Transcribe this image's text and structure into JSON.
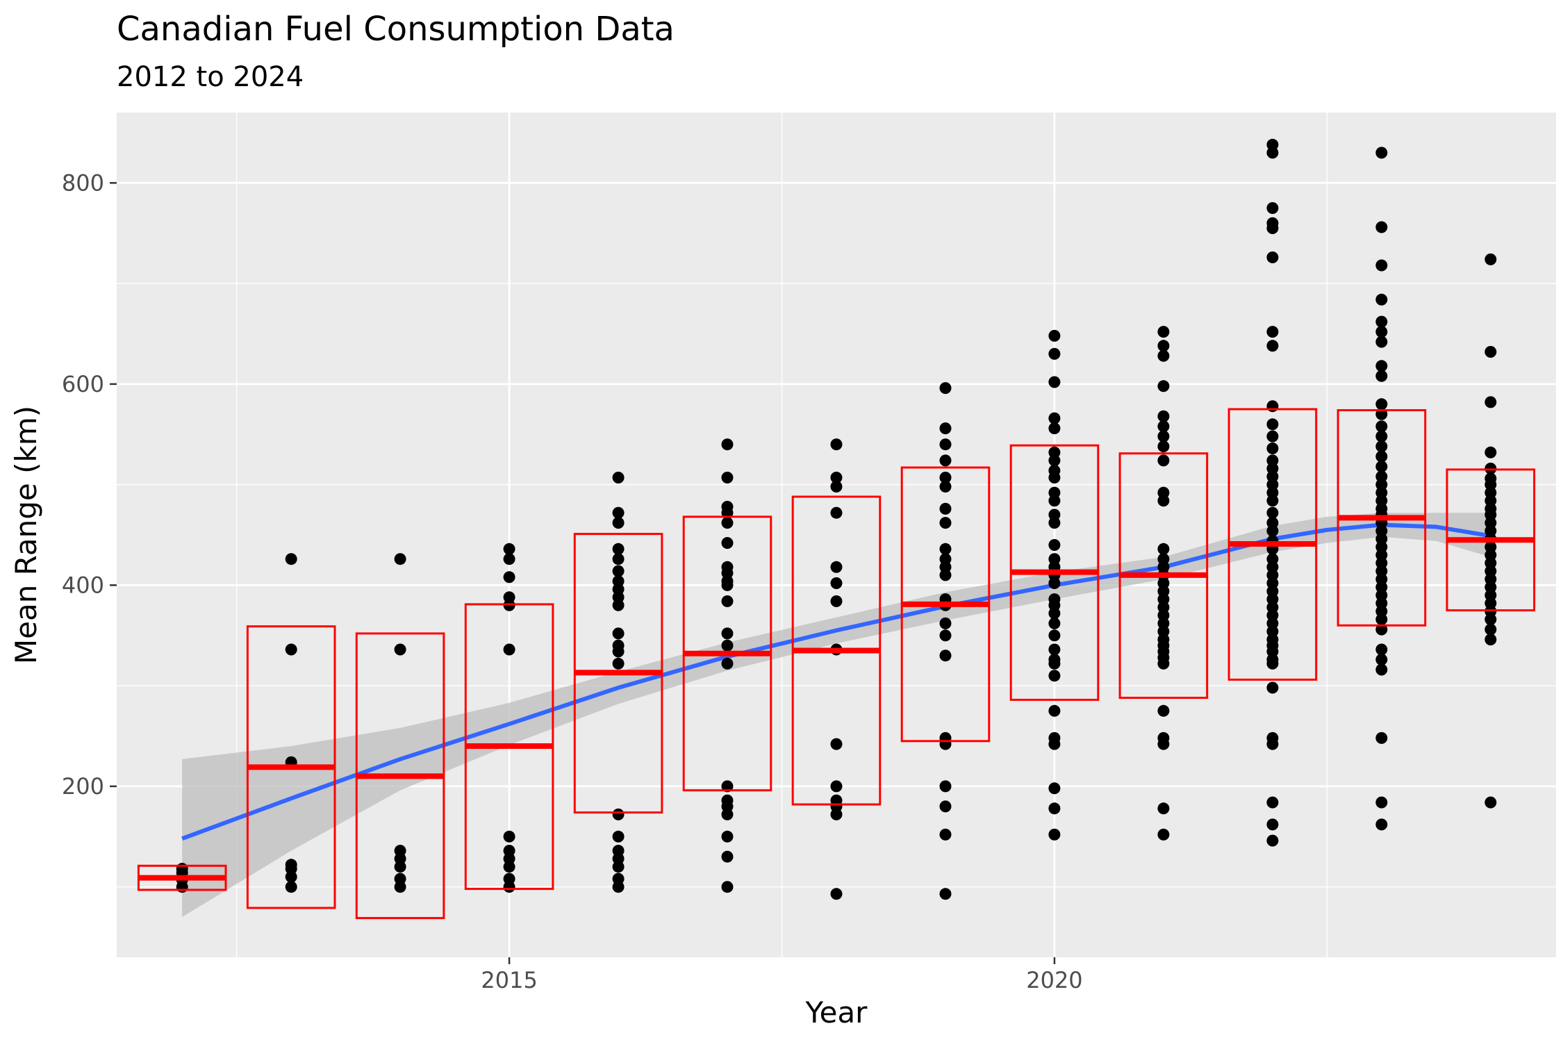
{
  "chart_data": {
    "type": "scatter",
    "title": "Canadian Fuel Consumption Data",
    "subtitle": "2012 to 2024",
    "xlabel": "Year",
    "ylabel": "Mean Range (km)",
    "xlim": [
      2011.4,
      2024.6
    ],
    "ylim": [
      30,
      870
    ],
    "x_ticks": [
      2015,
      2020
    ],
    "y_ticks": [
      200,
      400,
      600,
      800
    ],
    "grid": true,
    "legend": "none",
    "colors": {
      "points": "#000000",
      "summary_box": "#ff0000",
      "smooth_line": "#3366ff",
      "confidence_band": "#bebebe",
      "panel_background": "#ebebeb",
      "grid": "#ffffff"
    },
    "summary_boxes": [
      {
        "x": 2012,
        "mean": 109,
        "low": 97,
        "high": 121
      },
      {
        "x": 2013,
        "mean": 219,
        "low": 79,
        "high": 359
      },
      {
        "x": 2014,
        "mean": 210,
        "low": 69,
        "high": 352
      },
      {
        "x": 2015,
        "mean": 240,
        "low": 98,
        "high": 381
      },
      {
        "x": 2016,
        "mean": 313,
        "low": 174,
        "high": 451
      },
      {
        "x": 2017,
        "mean": 332,
        "low": 196,
        "high": 468
      },
      {
        "x": 2018,
        "mean": 335,
        "low": 182,
        "high": 488
      },
      {
        "x": 2019,
        "mean": 381,
        "low": 245,
        "high": 517
      },
      {
        "x": 2020,
        "mean": 413,
        "low": 286,
        "high": 539
      },
      {
        "x": 2021,
        "mean": 410,
        "low": 288,
        "high": 531
      },
      {
        "x": 2022,
        "mean": 441,
        "low": 306,
        "high": 575
      },
      {
        "x": 2023,
        "mean": 467,
        "low": 360,
        "high": 574
      },
      {
        "x": 2024,
        "mean": 445,
        "low": 375,
        "high": 515
      }
    ],
    "smooth_line": {
      "x": [
        2012,
        2013,
        2014,
        2015,
        2016,
        2017,
        2018,
        2019,
        2020,
        2021,
        2022,
        2022.5,
        2023,
        2023.5,
        2024
      ],
      "y": [
        148,
        188,
        227,
        262,
        298,
        329,
        355,
        379,
        400,
        418,
        446,
        455,
        460,
        458,
        449
      ],
      "upper": [
        227,
        240,
        258,
        283,
        314,
        343,
        368,
        393,
        413,
        428,
        459,
        468,
        472,
        472,
        472
      ],
      "lower": [
        70,
        136,
        196,
        241,
        282,
        315,
        342,
        365,
        386,
        406,
        433,
        442,
        448,
        444,
        428
      ]
    },
    "points": [
      {
        "x": 2012,
        "y": [
          100,
          107,
          114,
          118
        ]
      },
      {
        "x": 2013,
        "y": [
          426,
          336,
          224,
          122,
          118,
          110,
          100
        ]
      },
      {
        "x": 2014,
        "y": [
          426,
          336,
          136,
          128,
          120,
          108,
          100
        ]
      },
      {
        "x": 2015,
        "y": [
          436,
          426,
          408,
          388,
          380,
          336,
          150,
          136,
          128,
          120,
          108,
          100
        ]
      },
      {
        "x": 2016,
        "y": [
          507,
          472,
          462,
          436,
          426,
          414,
          404,
          396,
          388,
          380,
          352,
          340,
          334,
          322,
          172,
          150,
          136,
          128,
          120,
          108,
          100
        ]
      },
      {
        "x": 2017,
        "y": [
          540,
          507,
          478,
          472,
          462,
          442,
          418,
          412,
          404,
          400,
          384,
          352,
          340,
          322,
          200,
          186,
          180,
          172,
          150,
          130,
          100
        ]
      },
      {
        "x": 2018,
        "y": [
          540,
          507,
          498,
          472,
          418,
          402,
          384,
          336,
          242,
          200,
          186,
          180,
          172,
          93
        ]
      },
      {
        "x": 2019,
        "y": [
          596,
          556,
          540,
          524,
          507,
          498,
          476,
          462,
          436,
          426,
          418,
          410,
          386,
          380,
          362,
          350,
          330,
          248,
          242,
          200,
          180,
          152,
          93
        ]
      },
      {
        "x": 2020,
        "y": [
          648,
          630,
          602,
          566,
          556,
          532,
          524,
          514,
          507,
          492,
          484,
          470,
          462,
          440,
          426,
          418,
          410,
          402,
          386,
          380,
          372,
          362,
          350,
          336,
          326,
          322,
          310,
          275,
          248,
          242,
          198,
          178,
          152
        ]
      },
      {
        "x": 2021,
        "y": [
          652,
          638,
          628,
          598,
          568,
          558,
          548,
          538,
          524,
          492,
          484,
          436,
          426,
          418,
          410,
          402,
          394,
          386,
          378,
          370,
          362,
          354,
          346,
          340,
          334,
          328,
          322,
          275,
          248,
          242,
          178,
          152
        ]
      },
      {
        "x": 2022,
        "y": [
          838,
          830,
          775,
          760,
          755,
          726,
          652,
          638,
          578,
          560,
          548,
          536,
          524,
          516,
          508,
          500,
          492,
          484,
          472,
          462,
          454,
          444,
          436,
          426,
          418,
          410,
          402,
          394,
          386,
          378,
          370,
          362,
          354,
          346,
          340,
          334,
          326,
          322,
          298,
          248,
          242,
          184,
          162,
          146
        ]
      },
      {
        "x": 2023,
        "y": [
          830,
          756,
          718,
          684,
          662,
          652,
          642,
          618,
          608,
          580,
          570,
          558,
          548,
          538,
          528,
          518,
          508,
          500,
          492,
          484,
          476,
          470,
          462,
          454,
          446,
          438,
          430,
          422,
          414,
          406,
          398,
          390,
          382,
          374,
          366,
          356,
          336,
          326,
          316,
          248,
          184,
          162
        ]
      },
      {
        "x": 2024,
        "y": [
          724,
          632,
          582,
          532,
          516,
          506,
          500,
          492,
          484,
          476,
          470,
          462,
          454,
          446,
          438,
          430,
          422,
          414,
          406,
          398,
          390,
          382,
          374,
          366,
          356,
          346,
          184
        ]
      }
    ]
  }
}
